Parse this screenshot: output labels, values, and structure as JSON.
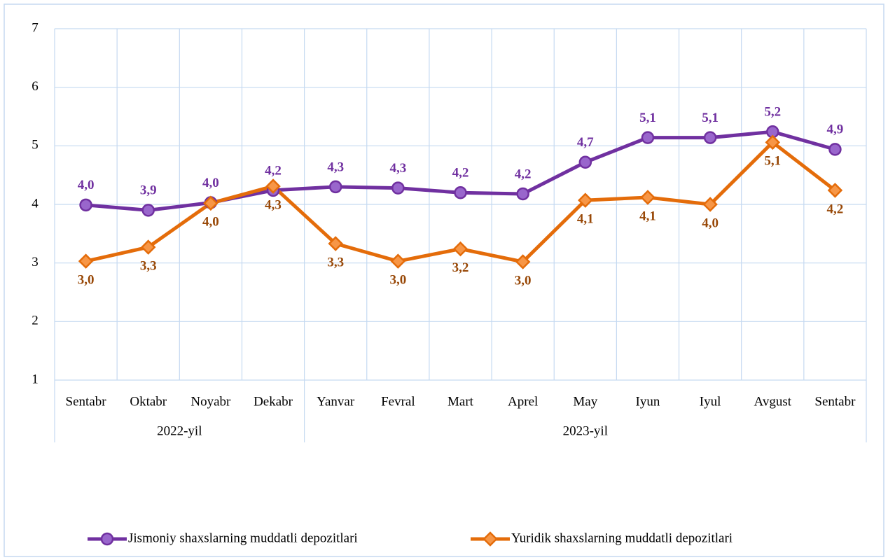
{
  "chart_data": {
    "type": "line",
    "categories": [
      "Sentabr",
      "Oktabr",
      "Noyabr",
      "Dekabr",
      "Yanvar",
      "Fevral",
      "Mart",
      "Aprel",
      "May",
      "Iyun",
      "Iyul",
      "Avgust",
      "Sentabr"
    ],
    "groups": [
      {
        "name": "2022-yil",
        "count": 4
      },
      {
        "name": "2023-yil",
        "count": 9
      }
    ],
    "series": [
      {
        "name": "Jismoniy shaxslarning muddatli depozitlari",
        "color": "#7030a0",
        "marker": "circle",
        "values": [
          3.99,
          3.9,
          4.03,
          4.24,
          4.3,
          4.28,
          4.2,
          4.18,
          4.72,
          5.14,
          5.14,
          5.24,
          4.94
        ],
        "value_labels": [
          "4,0",
          "3,9",
          "4,0",
          "4,2",
          "4,3",
          "4,3",
          "4,2",
          "4,2",
          "4,7",
          "5,1",
          "5,1",
          "5,2",
          "4,9"
        ]
      },
      {
        "name": "Yuridik shaxslarning muddatli depozitlari",
        "color": "#e46c0a",
        "marker": "diamond",
        "values": [
          3.03,
          3.27,
          4.02,
          4.31,
          3.33,
          3.03,
          3.24,
          3.02,
          4.07,
          4.12,
          4.0,
          5.06,
          4.24
        ],
        "value_labels": [
          "3,0",
          "3,3",
          "4,0",
          "4,3",
          "3,3",
          "3,0",
          "3,2",
          "3,0",
          "4,1",
          "4,1",
          "4,0",
          "5,1",
          "4,2"
        ]
      }
    ],
    "ylim": [
      1,
      7
    ],
    "yticks": [
      1,
      2,
      3,
      4,
      5,
      6,
      7
    ],
    "grid": true,
    "legend": "bottom"
  }
}
